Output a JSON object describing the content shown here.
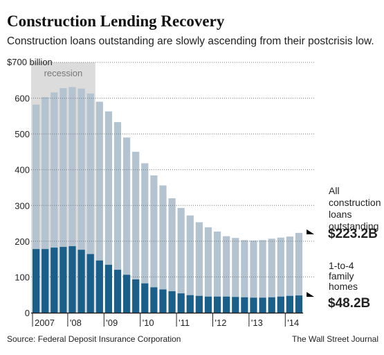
{
  "header": {
    "title": "Construction Lending Recovery",
    "subtitle": "Construction loans outstanding are slowly ascending from their postcrisis low."
  },
  "footer": {
    "source": "Source: Federal Deposit Insurance Corporation",
    "credit": "The Wall Street Journal"
  },
  "colors": {
    "total_series": "#b3c3d0",
    "family_series": "#1a5f8a",
    "recession_shade": "#dcdcdc",
    "grid": "#777777",
    "axis": "#222222"
  },
  "chart_data": {
    "type": "bar",
    "title": "Construction Lending Recovery",
    "subtitle": "Construction loans outstanding are slowly ascending from their postcrisis low.",
    "xlabel": "",
    "ylabel": "",
    "ylim": [
      0,
      700
    ],
    "yticks": [
      0,
      100,
      200,
      300,
      400,
      500,
      600,
      700
    ],
    "ytick_labels": [
      "0",
      "100",
      "200",
      "300",
      "400",
      "500",
      "600",
      "$700 billion"
    ],
    "year_ticks": [
      "2007",
      "'08",
      "'09",
      "'10",
      "'11",
      "'12",
      "'13",
      "'14"
    ],
    "grid": true,
    "annotations": {
      "recession": {
        "label": "recession",
        "start_index": 0,
        "end_index": 6
      }
    },
    "series": [
      {
        "name": "All construction loans outstanding",
        "label_lines": [
          "All",
          "construction",
          "loans",
          "outstanding"
        ],
        "end_value_label": "$223.2B",
        "values": [
          582,
          603,
          616,
          628,
          631,
          627,
          613,
          590,
          563,
          533,
          490,
          450,
          418,
          384,
          356,
          320,
          293,
          272,
          253,
          239,
          227,
          214,
          209,
          203,
          202,
          203,
          207,
          210,
          213,
          223.2
        ]
      },
      {
        "name": "1-to-4 family homes",
        "label_lines": [
          "1-to-4",
          "family",
          "homes"
        ],
        "end_value_label": "$48.2B",
        "values": [
          178,
          178,
          182,
          184,
          186,
          176,
          164,
          146,
          134,
          120,
          106,
          93,
          82,
          71,
          65,
          60,
          54,
          49,
          47,
          45,
          45,
          45,
          44,
          43,
          42,
          42,
          43,
          45,
          47,
          48.2
        ]
      }
    ]
  }
}
